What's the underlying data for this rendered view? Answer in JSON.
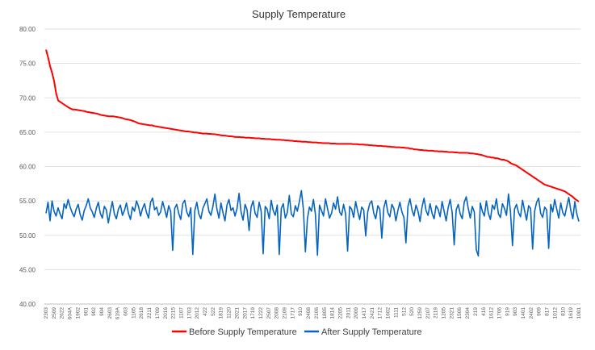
{
  "chart_data": {
    "type": "line",
    "title": "Supply Temperature",
    "xlabel": "",
    "ylabel": "",
    "ylim": [
      40,
      80
    ],
    "y_ticks": [
      "40.00",
      "45.00",
      "50.00",
      "55.00",
      "60.00",
      "65.00",
      "70.00",
      "75.00",
      "80.00"
    ],
    "y_tick_values": [
      40,
      45,
      50,
      55,
      60,
      65,
      70,
      75,
      80
    ],
    "grid": "horizontal",
    "legend_position": "bottom",
    "x_tick_labels": [
      "2303",
      "2509",
      "2622",
      "604A",
      "1902",
      "901",
      "902",
      "904",
      "2603",
      "619A",
      "603",
      "1105",
      "2618",
      "2211",
      "1709",
      "2016",
      "2215",
      "1107",
      "1703",
      "2012",
      "422",
      "522",
      "1819",
      "1120",
      "2021",
      "2017",
      "1719",
      "1222",
      "2507",
      "2008",
      "2109",
      "1717",
      "910",
      "2408",
      "2106",
      "1805",
      "1814",
      "2205",
      "2011",
      "2009",
      "1417",
      "2421",
      "1712",
      "1602",
      "1111",
      "512",
      "520",
      "1259",
      "2107",
      "2119",
      "1205",
      "2321",
      "1506",
      "2304",
      "219",
      "416",
      "1612",
      "1706",
      "919",
      "903",
      "1401",
      "2402",
      "909",
      "817",
      "1012",
      "810",
      "1619",
      "1001"
    ],
    "series": [
      {
        "name": "Before Supply Temperature",
        "color": "#ff0000",
        "values": [
          77.0,
          75.9,
          74.6,
          73.6,
          72.4,
          70.6,
          69.6,
          69.4,
          69.2,
          69.0,
          68.8,
          68.6,
          68.45,
          68.3,
          68.3,
          68.25,
          68.2,
          68.15,
          68.1,
          68.05,
          67.95,
          67.9,
          67.85,
          67.8,
          67.75,
          67.7,
          67.6,
          67.5,
          67.45,
          67.4,
          67.35,
          67.3,
          67.3,
          67.3,
          67.25,
          67.2,
          67.15,
          67.1,
          67.0,
          66.9,
          66.85,
          66.8,
          66.7,
          66.6,
          66.5,
          66.35,
          66.25,
          66.2,
          66.15,
          66.1,
          66.05,
          66.0,
          66.0,
          65.9,
          65.85,
          65.8,
          65.75,
          65.7,
          65.65,
          65.6,
          65.55,
          65.5,
          65.45,
          65.4,
          65.35,
          65.3,
          65.25,
          65.2,
          65.15,
          65.1,
          65.1,
          65.05,
          65.0,
          64.95,
          64.95,
          64.9,
          64.85,
          64.8,
          64.8,
          64.8,
          64.75,
          64.75,
          64.7,
          64.7,
          64.65,
          64.6,
          64.55,
          64.5,
          64.5,
          64.45,
          64.4,
          64.4,
          64.35,
          64.3,
          64.3,
          64.3,
          64.25,
          64.25,
          64.2,
          64.2,
          64.2,
          64.15,
          64.15,
          64.1,
          64.1,
          64.1,
          64.05,
          64.05,
          64.0,
          64.0,
          64.0,
          63.95,
          63.95,
          63.9,
          63.9,
          63.9,
          63.85,
          63.85,
          63.8,
          63.8,
          63.75,
          63.75,
          63.7,
          63.7,
          63.65,
          63.65,
          63.6,
          63.6,
          63.6,
          63.55,
          63.55,
          63.5,
          63.5,
          63.5,
          63.45,
          63.45,
          63.4,
          63.4,
          63.4,
          63.4,
          63.35,
          63.35,
          63.35,
          63.3,
          63.3,
          63.3,
          63.3,
          63.3,
          63.3,
          63.3,
          63.3,
          63.25,
          63.25,
          63.25,
          63.2,
          63.2,
          63.2,
          63.15,
          63.15,
          63.1,
          63.1,
          63.05,
          63.05,
          63.0,
          63.0,
          63.0,
          62.95,
          62.95,
          62.9,
          62.9,
          62.85,
          62.85,
          62.8,
          62.8,
          62.8,
          62.75,
          62.75,
          62.7,
          62.7,
          62.6,
          62.6,
          62.5,
          62.5,
          62.45,
          62.4,
          62.4,
          62.35,
          62.35,
          62.3,
          62.3,
          62.3,
          62.25,
          62.25,
          62.2,
          62.2,
          62.2,
          62.15,
          62.15,
          62.1,
          62.1,
          62.1,
          62.05,
          62.05,
          62.0,
          62.0,
          62.0,
          62.0,
          62.0,
          61.95,
          61.9,
          61.9,
          61.85,
          61.8,
          61.75,
          61.7,
          61.6,
          61.5,
          61.4,
          61.4,
          61.3,
          61.3,
          61.2,
          61.2,
          61.1,
          61.0,
          61.0,
          60.9,
          60.8,
          60.6,
          60.4,
          60.3,
          60.2,
          60.0,
          59.8,
          59.6,
          59.4,
          59.2,
          59.0,
          58.8,
          58.6,
          58.4,
          58.2,
          58.0,
          57.8,
          57.6,
          57.4,
          57.3,
          57.2,
          57.1,
          57.0,
          56.9,
          56.8,
          56.7,
          56.6,
          56.5,
          56.4,
          56.2,
          56.0,
          55.8,
          55.6,
          55.3,
          55.1,
          54.9
        ]
      },
      {
        "name": "After Supply Temperature",
        "color": "#0563c1",
        "values": [
          53.2,
          54.8,
          52.1,
          55.0,
          53.5,
          52.8,
          54.0,
          53.1,
          52.4,
          54.6,
          53.9,
          55.2,
          54.1,
          53.3,
          52.7,
          53.8,
          54.5,
          53.0,
          52.2,
          53.6,
          54.3,
          55.3,
          54.0,
          53.4,
          52.6,
          53.9,
          54.8,
          53.2,
          52.5,
          54.2,
          53.7,
          51.8,
          53.5,
          54.9,
          53.1,
          52.4,
          53.8,
          54.4,
          52.9,
          53.6,
          54.7,
          53.2,
          52.3,
          54.1,
          53.5,
          55.0,
          54.2,
          52.8,
          53.9,
          54.6,
          53.3,
          52.5,
          54.8,
          55.4,
          53.7,
          54.1,
          52.9,
          53.4,
          54.9,
          53.8,
          52.6,
          54.3,
          53.5,
          47.8,
          53.9,
          54.5,
          53.2,
          52.3,
          54.6,
          55.1,
          53.4,
          52.7,
          54.0,
          47.2,
          53.6,
          54.8,
          53.1,
          52.4,
          53.9,
          54.6,
          55.3,
          53.5,
          52.9,
          54.2,
          56.0,
          53.8,
          52.5,
          54.7,
          53.3,
          52.1,
          54.4,
          55.2,
          53.6,
          54.0,
          52.8,
          53.9,
          56.1,
          53.4,
          52.2,
          54.5,
          53.7,
          50.7,
          54.1,
          55.0,
          53.2,
          52.6,
          54.8,
          53.5,
          47.3,
          54.2,
          53.8,
          52.4,
          55.1,
          53.6,
          52.9,
          54.4,
          47.2,
          53.9,
          54.6,
          52.5,
          53.3,
          55.8,
          53.1,
          52.7,
          54.3,
          53.5,
          54.9,
          56.5,
          53.8,
          47.6,
          52.4,
          54.1,
          53.5,
          55.2,
          53.0,
          47.1,
          54.4,
          53.6,
          52.8,
          55.3,
          53.9,
          52.5,
          53.2,
          54.7,
          53.8,
          55.6,
          53.4,
          52.9,
          54.5,
          53.1,
          47.7,
          54.2,
          53.8,
          52.6,
          54.9,
          53.5,
          52.3,
          54.1,
          53.7,
          49.9,
          53.4,
          54.6,
          55.0,
          53.2,
          52.4,
          54.3,
          53.8,
          49.6,
          54.0,
          55.1,
          53.3,
          52.7,
          54.5,
          53.9,
          52.1,
          53.6,
          54.8,
          53.4,
          52.6,
          48.9,
          54.2,
          55.3,
          53.7,
          52.8,
          54.4,
          53.5,
          52.0,
          54.1,
          55.4,
          53.6,
          52.9,
          54.6,
          53.2,
          52.4,
          54.3,
          53.8,
          52.7,
          54.9,
          53.5,
          52.1,
          54.0,
          55.2,
          53.3,
          48.6,
          53.7,
          54.5,
          53.1,
          52.4,
          54.8,
          55.6,
          53.9,
          52.5,
          54.2,
          53.4,
          47.9,
          47.0,
          54.7,
          53.5,
          52.8,
          55.0,
          53.2,
          52.3,
          54.4,
          53.8,
          55.3,
          53.1,
          52.6,
          54.6,
          53.9,
          52.9,
          56.0,
          53.4,
          48.5,
          53.8,
          54.5,
          53.3,
          52.7,
          55.1,
          53.6,
          52.2,
          54.3,
          53.9,
          48.0,
          53.5,
          54.8,
          55.4,
          53.2,
          52.6,
          54.1,
          53.7,
          48.1,
          54.5,
          53.4,
          55.2,
          53.8,
          52.5,
          54.7,
          53.3,
          52.8,
          54.2,
          55.5,
          53.6,
          52.4,
          54.9,
          53.1,
          52.0
        ]
      }
    ]
  }
}
